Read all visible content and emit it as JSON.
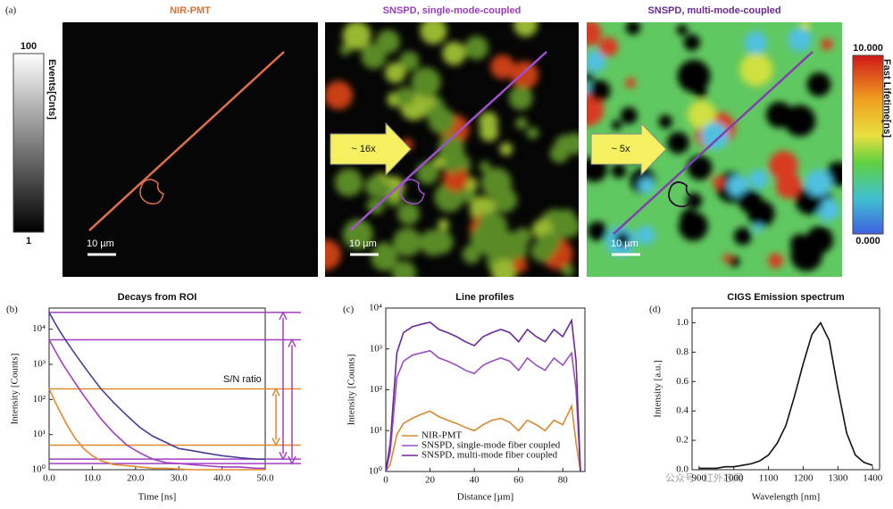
{
  "figure": {
    "panel_label": "(a)",
    "left_colorbar": {
      "top": "100",
      "bottom": "1",
      "label": "Events[Cnts]"
    },
    "right_colorbar": {
      "top": "10.000",
      "bottom": "0.000",
      "label": "Fast Lifetime[ns]"
    },
    "images": [
      {
        "title": "NIR-PMT",
        "scale_bar": "10 µm"
      },
      {
        "title": "SNSPD, single-mode-coupled",
        "scale_bar": "10 µm"
      },
      {
        "title": "SNSPD, multi-mode-coupled",
        "scale_bar": "10 µm"
      }
    ],
    "arrows": [
      "~ 16x",
      "~ 5x"
    ],
    "watermark": "公众号 · 红外芯闻"
  },
  "chart_data": [
    {
      "type": "line",
      "panel_label": "(b)",
      "title": "Decays from ROI",
      "x_label": "Time [ns]",
      "y_label": "Intensity [Counts]",
      "log_y": true,
      "annotation": "S/N ratio",
      "x": [
        0,
        1,
        2,
        3,
        4,
        6,
        8,
        10,
        12,
        15,
        18,
        21,
        24,
        27,
        30,
        33,
        36,
        40,
        44,
        48,
        50
      ],
      "series": [
        {
          "color": "#4b3a9a",
          "values": [
            30000,
            18000,
            11000,
            7000,
            4500,
            2000,
            900,
            420,
            200,
            80,
            35,
            16,
            9,
            6,
            4,
            3.5,
            3,
            2.5,
            2.2,
            2,
            2
          ]
        },
        {
          "color": "#a040c0",
          "values": [
            5000,
            3000,
            1800,
            1100,
            700,
            300,
            130,
            60,
            28,
            11,
            5,
            3,
            2,
            1.6,
            1.5,
            1.4,
            1.3,
            1.2,
            1.2,
            1.1,
            1.1
          ]
        },
        {
          "color": "#e08a30",
          "values": [
            200,
            110,
            60,
            35,
            20,
            8,
            4,
            2.5,
            1.8,
            1.4,
            1.3,
            1.2,
            1.1,
            1.1,
            1.05,
            1,
            1,
            1,
            1,
            1,
            1
          ]
        }
      ],
      "reference_lines": [
        {
          "y": 30000,
          "color": "#a040c0"
        },
        {
          "y": 5000,
          "color": "#a040c0"
        },
        {
          "y": 200,
          "color": "#e08a30"
        },
        {
          "y": 5,
          "color": "#e08a30"
        },
        {
          "y": 2,
          "color": "#a040c0"
        },
        {
          "y": 1.5,
          "color": "#a040c0"
        }
      ],
      "xlim": [
        0,
        50
      ],
      "ylim": [
        1,
        40000
      ],
      "xticks": [
        {
          "value": 0,
          "label": "0.0"
        },
        {
          "value": 10,
          "label": "10.0"
        },
        {
          "value": 20,
          "label": "20.0"
        },
        {
          "value": 30,
          "label": "30.0"
        },
        {
          "value": 40,
          "label": "40.0"
        },
        {
          "value": 50,
          "label": "50.0"
        }
      ],
      "yticks": [
        {
          "value": 1,
          "label": "10⁰"
        },
        {
          "value": 10,
          "label": "10¹"
        },
        {
          "value": 100,
          "label": "10²"
        },
        {
          "value": 1000,
          "label": "10³"
        },
        {
          "value": 10000,
          "label": "10⁴"
        }
      ]
    },
    {
      "type": "line",
      "panel_label": "(c)",
      "title": "Line profiles",
      "x_label": "Distance [µm]",
      "y_label": "Intensity [Counts]",
      "log_y": true,
      "legend": "lower left",
      "x": [
        0,
        2,
        5,
        8,
        12,
        16,
        20,
        24,
        28,
        32,
        36,
        40,
        44,
        48,
        52,
        56,
        60,
        64,
        68,
        72,
        76,
        80,
        84,
        86,
        88
      ],
      "series": [
        {
          "name": "NIR-PMT",
          "color": "#d88a30",
          "values": [
            1,
            1.5,
            8,
            15,
            20,
            25,
            30,
            22,
            18,
            15,
            12,
            10,
            14,
            18,
            20,
            16,
            10,
            18,
            14,
            10,
            18,
            14,
            40,
            5,
            1
          ]
        },
        {
          "name": "SNSPD, single-mode fiber coupled",
          "color": "#9b4fc0",
          "values": [
            1,
            3,
            200,
            500,
            700,
            800,
            900,
            600,
            500,
            400,
            300,
            250,
            400,
            500,
            600,
            500,
            300,
            600,
            400,
            300,
            600,
            400,
            800,
            100,
            1
          ]
        },
        {
          "name": "SNSPD, multi-mode fiber coupled",
          "color": "#6a2a9a",
          "values": [
            1,
            5,
            800,
            2500,
            3500,
            4000,
            4500,
            3000,
            2500,
            2000,
            1500,
            1200,
            2000,
            2500,
            3000,
            2500,
            1500,
            3000,
            2000,
            1500,
            3000,
            2000,
            5000,
            500,
            1
          ]
        }
      ],
      "xlim": [
        0,
        90
      ],
      "ylim": [
        1,
        10000
      ],
      "xticks": [
        0,
        20,
        40,
        60,
        80
      ],
      "yticks": [
        {
          "value": 1,
          "label": "10⁰"
        },
        {
          "value": 10,
          "label": "10¹"
        },
        {
          "value": 100,
          "label": "10²"
        },
        {
          "value": 1000,
          "label": "10³"
        },
        {
          "value": 10000,
          "label": "10⁴"
        }
      ]
    },
    {
      "type": "line",
      "panel_label": "(d)",
      "title": "CIGS Emission spectrum",
      "x_label": "Wavelength [nm]",
      "y_label": "Intensity [a.u.]",
      "log_y": false,
      "x": [
        900,
        925,
        950,
        975,
        1000,
        1025,
        1050,
        1075,
        1100,
        1125,
        1150,
        1175,
        1200,
        1225,
        1250,
        1275,
        1300,
        1325,
        1350,
        1375,
        1400
      ],
      "series": [
        {
          "color": "#111111",
          "values": [
            0.01,
            0.01,
            0.01,
            0.02,
            0.02,
            0.03,
            0.04,
            0.06,
            0.1,
            0.18,
            0.3,
            0.5,
            0.72,
            0.92,
            1.0,
            0.88,
            0.55,
            0.25,
            0.1,
            0.05,
            0.03
          ]
        }
      ],
      "xlim": [
        880,
        1420
      ],
      "ylim": [
        0,
        1.1
      ],
      "xticks": [
        900,
        1000,
        1100,
        1200,
        1300,
        1400
      ],
      "yticks": [
        {
          "value": 0,
          "label": "0.0"
        },
        {
          "value": 0.2,
          "label": "0.2"
        },
        {
          "value": 0.4,
          "label": "0.4"
        },
        {
          "value": 0.6,
          "label": "0.6"
        },
        {
          "value": 0.8,
          "label": "0.8"
        },
        {
          "value": 1,
          "label": "1.0"
        }
      ]
    }
  ]
}
